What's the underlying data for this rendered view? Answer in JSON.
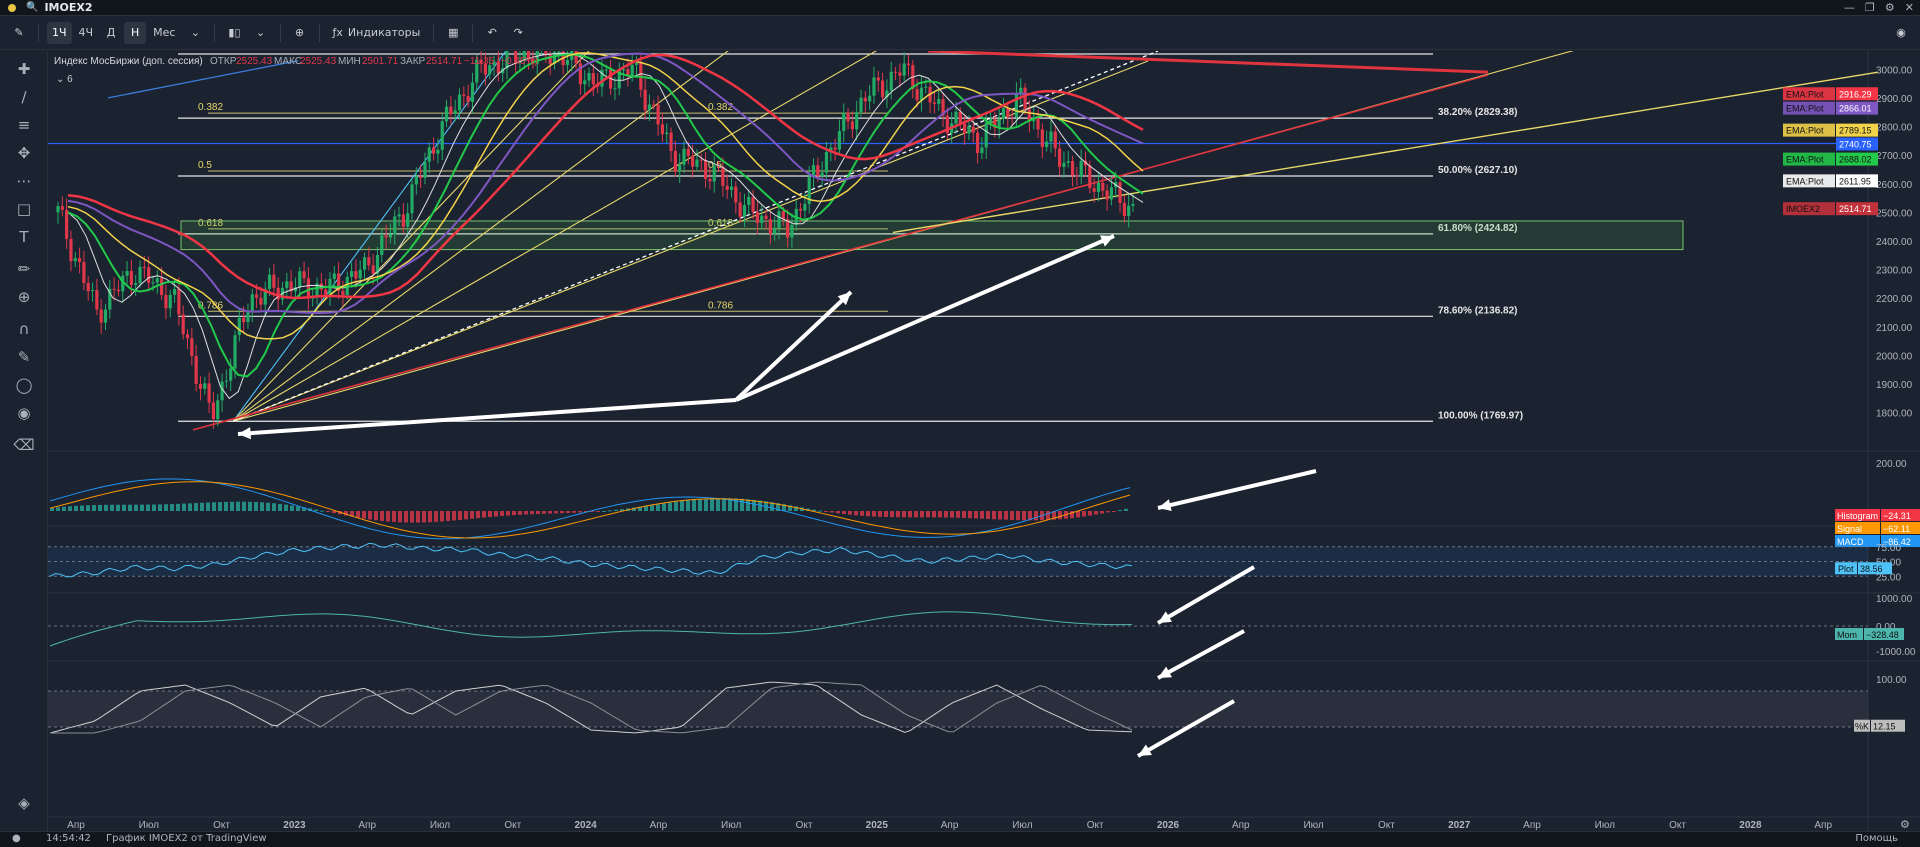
{
  "titlebar": {
    "title": "IMOEX2"
  },
  "toolbar": {
    "timeframes": [
      "1Ч",
      "4Ч",
      "Д",
      "Н",
      "Мес"
    ],
    "active_timeframe": "Н",
    "indicators_label": "Индикаторы"
  },
  "legend": {
    "name": "Индекс МосБиржи (доп. сессия)",
    "interval_count": "6",
    "open_label": "ОТКР",
    "open": "2525.43",
    "high_label": "МАКС",
    "high": "2525.43",
    "low_label": "МИН",
    "low": "2501.71",
    "close_label": "ЗАКР",
    "close": "2514.71",
    "change": "−11.35 (−0.45%)"
  },
  "fib_right": [
    {
      "label": "38.20% (2829.38)",
      "value": 2829.38
    },
    {
      "label": "50.00% (2627.10)",
      "value": 2627.1
    },
    {
      "label": "61.80% (2424.82)",
      "value": 2424.82
    },
    {
      "label": "78.60% (2136.82)",
      "value": 2136.82
    },
    {
      "label": "100.00% (1769.97)",
      "value": 1769.97
    }
  ],
  "fib_left_labels": [
    "0.382",
    "0.5",
    "0.618",
    "0.786"
  ],
  "price_labels": [
    {
      "label": "EMA:Plot",
      "value": "2916.29",
      "color": "#f23645"
    },
    {
      "label": "EMA:Plot",
      "value": "2866.01",
      "color": "#7e57c2"
    },
    {
      "label": "EMA:Plot",
      "value": "2789.15",
      "color": "#f3d34a"
    },
    {
      "label": "",
      "value": "2740.75",
      "color": "#2962ff"
    },
    {
      "label": "EMA:Plot",
      "value": "2688.02",
      "color": "#22c94a"
    },
    {
      "label": "EMA:Plot",
      "value": "2611.95",
      "color": "#ffffff"
    },
    {
      "label": "IMOEX2",
      "value": "2514.71",
      "color": "#c2323b"
    }
  ],
  "macd_labels": [
    {
      "label": "Histogram",
      "value": "−24.31",
      "color": "#f23645"
    },
    {
      "label": "Signal",
      "value": "−62.11",
      "color": "#ff9800"
    },
    {
      "label": "MACD",
      "value": "−86.42",
      "color": "#2196f3"
    }
  ],
  "rsi_label": {
    "label": "Plot",
    "value": "38.56",
    "color": "#4fc3f7"
  },
  "mom_label": {
    "label": "Mom",
    "value": "−328.48",
    "color": "#4db6ac"
  },
  "stoch_label": {
    "label": "%K",
    "value": "12.15",
    "color": "#bdbdbd"
  },
  "chart_data": {
    "type": "candlestick",
    "symbol": "IMOEX2",
    "x_ticks": [
      "Апр",
      "Июл",
      "Окт",
      "2023",
      "Апр",
      "Июл",
      "Окт",
      "2024",
      "Апр",
      "Июл",
      "Окт",
      "2025",
      "Апр",
      "Июл",
      "Окт",
      "2026",
      "Апр",
      "Июл",
      "Окт",
      "2027",
      "Апр",
      "Июл",
      "Окт",
      "2028",
      "Апр"
    ],
    "price_ticks": [
      "3000.00",
      "2900.00",
      "2800.00",
      "2700.00",
      "2600.00",
      "2500.00",
      "2400.00",
      "2300.00",
      "2200.00",
      "2100.00",
      "2000.00",
      "1900.00",
      "1800.00"
    ],
    "price_ylim": [
      1720,
      3060
    ],
    "price_series_approx": [
      2500,
      2150,
      2300,
      2200,
      1780,
      2200,
      2250,
      2230,
      2300,
      2500,
      2800,
      3000,
      3050,
      3060,
      2950,
      3000,
      2700,
      2650,
      2500,
      2440,
      2700,
      2900,
      3000,
      2850,
      2750,
      2900,
      2700,
      2600,
      2515
    ],
    "macd_ticks": [
      "200.00"
    ],
    "rsi_ticks": [
      "75.00",
      "50.00",
      "25.00"
    ],
    "rsi_ylim": [
      0,
      100
    ],
    "rsi_series_approx": [
      25,
      30,
      40,
      38,
      45,
      60,
      70,
      75,
      78,
      72,
      70,
      60,
      55,
      45,
      40,
      35,
      30,
      55,
      65,
      70,
      60,
      50,
      55,
      60,
      50,
      45,
      40
    ],
    "mom_ticks": [
      "1000.00",
      "0.00",
      "-1000.00"
    ],
    "stoch_ticks": [
      "100.00"
    ],
    "stoch_series_approx": [
      10,
      30,
      80,
      90,
      60,
      20,
      70,
      85,
      40,
      80,
      90,
      60,
      15,
      10,
      20,
      85,
      95,
      90,
      40,
      10,
      60,
      90,
      50,
      15,
      12
    ]
  },
  "statusbar": {
    "time": "14:54:42",
    "snapshot": "График IMOEX2 от TradingView",
    "help": "Помощь"
  }
}
